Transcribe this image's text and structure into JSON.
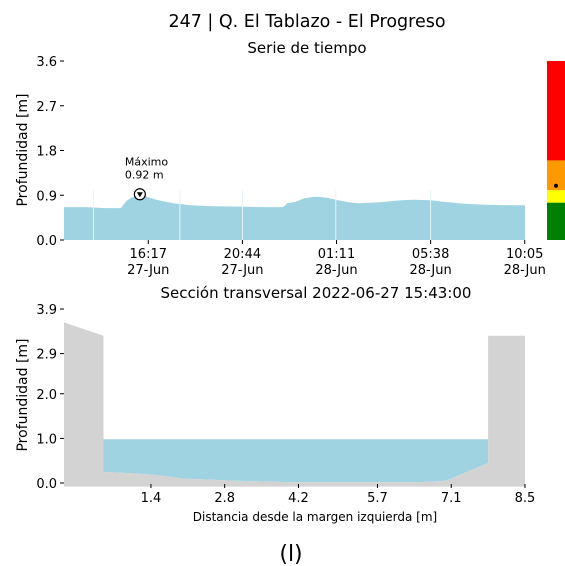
{
  "figure": {
    "title": "247 | Q. El Tablazo - El Progreso",
    "caption": "(l)"
  },
  "colors": {
    "water": "#9fd3e1",
    "terrain": "#d3d3d3",
    "alert_red": "#ff0000",
    "alert_orange": "#ff9900",
    "alert_yellow": "#ffff00",
    "alert_green": "#008000"
  },
  "chart_data": [
    {
      "type": "area",
      "title": "Serie de tiempo",
      "xlabel": "",
      "ylabel": "Profundidad [m]",
      "ylim": [
        0,
        3.6
      ],
      "yticks": [
        "0.0",
        "0.9",
        "1.8",
        "2.7",
        "3.6"
      ],
      "xticks": [
        {
          "time": "16:17",
          "date": "27-Jun"
        },
        {
          "time": "20:44",
          "date": "27-Jun"
        },
        {
          "time": "01:11",
          "date": "28-Jun"
        },
        {
          "time": "05:38",
          "date": "28-Jun"
        },
        {
          "time": "10:05",
          "date": "28-Jun"
        }
      ],
      "x_hours_from_first_tick": [
        -4.0,
        -3.5,
        -3.0,
        -2.5,
        -2.0,
        -1.3,
        -1.2,
        -1.0,
        -0.8,
        -0.4,
        -0.2,
        0.0,
        0.3,
        0.7,
        1.2,
        2.0,
        3.0,
        4.47,
        5.5,
        6.4,
        6.6,
        7.0,
        7.4,
        7.7,
        8.0,
        8.5,
        9.0,
        9.5,
        10.0,
        11.0,
        12.0,
        12.6,
        13.4,
        14.0,
        15.0,
        16.0,
        17.0,
        17.88
      ],
      "values": [
        0.66,
        0.66,
        0.66,
        0.65,
        0.64,
        0.64,
        0.7,
        0.8,
        0.85,
        0.92,
        0.9,
        0.86,
        0.82,
        0.78,
        0.74,
        0.7,
        0.68,
        0.67,
        0.66,
        0.66,
        0.74,
        0.77,
        0.84,
        0.86,
        0.87,
        0.85,
        0.8,
        0.76,
        0.74,
        0.76,
        0.8,
        0.81,
        0.8,
        0.77,
        0.73,
        0.71,
        0.7,
        0.7
      ],
      "annotation": {
        "label": "Máximo",
        "value_text": "0.92 m",
        "x_hours_from_first_tick": -0.4,
        "value": 0.92
      },
      "alert_levels": [
        {
          "color": "red",
          "from": 1.6,
          "to": 3.6
        },
        {
          "color": "orange",
          "from": 1.0,
          "to": 1.6
        },
        {
          "color": "yellow",
          "from": 0.75,
          "to": 1.0
        },
        {
          "color": "green",
          "from": 0.0,
          "to": 0.75
        }
      ],
      "current_marker_value": 1.05
    },
    {
      "type": "area",
      "title": "Sección transversal 2022-06-27 15:43:00",
      "xlabel": "Distancia desde la margen izquierda [m]",
      "ylabel": "Profundidad [m]",
      "ylim": [
        0,
        3.9
      ],
      "yticks": [
        "0.0",
        "1.0",
        "2.0",
        "2.9",
        "3.9"
      ],
      "xlim": [
        -0.25,
        8.5
      ],
      "xticks": [
        "1.4",
        "2.8",
        "4.2",
        "5.7",
        "7.1",
        "8.5"
      ],
      "water_level": 0.98,
      "terrain": {
        "x": [
          -0.25,
          0.5,
          0.5,
          1.0,
          1.5,
          2.0,
          3.0,
          4.0,
          5.0,
          6.0,
          6.5,
          7.0,
          7.5,
          7.8,
          7.8,
          8.5
        ],
        "y": [
          3.6,
          3.3,
          0.25,
          0.22,
          0.18,
          0.1,
          0.05,
          0.02,
          0.02,
          0.02,
          0.02,
          0.05,
          0.3,
          0.45,
          3.3,
          3.3
        ]
      }
    }
  ]
}
